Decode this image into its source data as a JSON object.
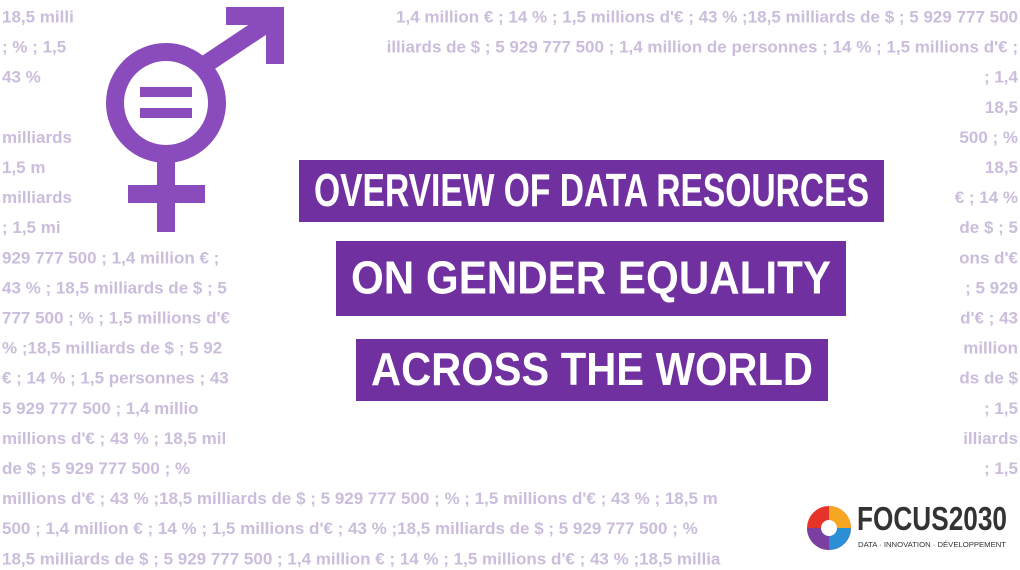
{
  "background_text": [
    {
      "left": "18,5 milli",
      "right": "1,4 million € ; 14 % ; 1,5 millions d'€ ; 43 % ;18,5 milliards de $ ; 5 929 777 500"
    },
    {
      "left": "; % ; 1,5",
      "right": "illiards de $ ; 5 929 777 500 ; 1,4 million de personnes ; 14 % ; 1,5 millions d'€ ;"
    },
    {
      "left": "43 %",
      "right": "; 1,4"
    },
    {
      "right": "18,5"
    },
    {
      "left": "milliards",
      "right": "500 ;  %"
    },
    {
      "left": "1,5 m",
      "right": "18,5"
    },
    {
      "left": "milliards",
      "right": "€ ; 14 %"
    },
    {
      "left": "; 1,5 mi",
      "right": "de $ ; 5"
    },
    {
      "left": "929 777 500 ; 1,4 million € ;",
      "right": "ons d'€"
    },
    {
      "left": "43 % ; 18,5 milliards de $ ; 5",
      "right": "; 5 929"
    },
    {
      "left": "777 500 ;  % ; 1,5 millions d'€",
      "right": "d'€ ; 43"
    },
    {
      "left": "% ;18,5 milliards de $ ; 5 92",
      "right": "million"
    },
    {
      "left": "€ ; 14 % ; 1,5 personnes ; 43",
      "right": "ds de $"
    },
    {
      "left": "5 929 777 500 ; 1,4 millio",
      "right": "; 1,5"
    },
    {
      "left": "millions d'€ ; 43 % ; 18,5 mil",
      "right": "illiards"
    },
    {
      "left": "de $ ; 5 929 777 500 ;  %",
      "right": "; 1,5"
    },
    {
      "text": "millions d'€ ; 43 % ;18,5 milliards de $ ; 5 929 777 500 ;  % ; 1,5 millions d'€ ; 43 % ; 18,5 m"
    },
    {
      "text": "500 ; 1,4 million € ; 14 % ; 1,5 millions d'€ ; 43 % ;18,5 milliards de $ ; 5 929 777 500 ;  %"
    },
    {
      "text": "18,5 milliards de $ ; 5 929 777 500 ; 1,4 million € ; 14 % ; 1,5 millions d'€ ; 43 % ;18,5 millia"
    }
  ],
  "title_lines": [
    "OVERVIEW OF DATA RESOURCES",
    "ON GENDER EQUALITY",
    "ACROSS THE WORLD"
  ],
  "logo": {
    "name": "FOCUS2030",
    "tagline": "DATA · INNOVATION · DÉVELOPPEMENT"
  }
}
